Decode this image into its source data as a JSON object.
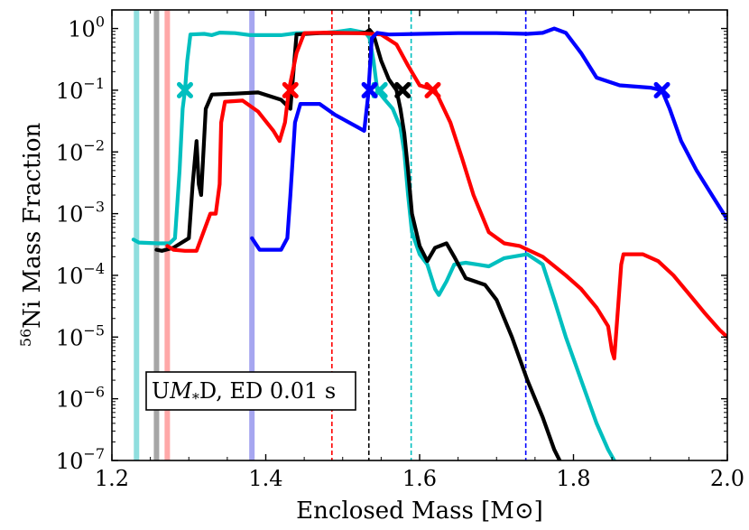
{
  "chart_data": {
    "type": "line",
    "xlabel": "Enclosed Mass [M⊙]",
    "ylabel_mass_number": "56",
    "ylabel_text": "Ni Mass Fraction",
    "xlim": [
      1.2,
      2.0
    ],
    "ylim": [
      1e-07,
      2
    ],
    "yscale": "log",
    "grid": false,
    "x_ticks": [
      1.2,
      1.4,
      1.6,
      1.8,
      2.0
    ],
    "x_tick_labels": [
      "1.2",
      "1.4",
      "1.6",
      "1.8",
      "2.0"
    ],
    "y_ticks": [
      1e-07,
      1e-06,
      1e-05,
      0.0001,
      0.001,
      0.01,
      0.1,
      1
    ],
    "y_tick_base": "10",
    "y_tick_exponents": [
      "−7",
      "−6",
      "−5",
      "−4",
      "−3",
      "−2",
      "−1",
      "0"
    ],
    "annotation": {
      "text_prefix": "U",
      "text_italic": "M",
      "text_sub": "*",
      "text_suffix": "D, ED 0.01 s",
      "location": "lower-left"
    },
    "vertical_bands": [
      {
        "x": 1.232,
        "color": "#8fdede"
      },
      {
        "x": 1.258,
        "color": "#a6a6a6"
      },
      {
        "x": 1.272,
        "color": "#ffa8a8"
      },
      {
        "x": 1.382,
        "color": "#a6a6f0"
      }
    ],
    "vertical_dashed_lines": [
      {
        "x": 1.486,
        "color": "#ff0000"
      },
      {
        "x": 1.534,
        "color": "#000000"
      },
      {
        "x": 1.589,
        "color": "#00bfbf"
      },
      {
        "x": 1.738,
        "color": "#0000ff"
      }
    ],
    "series": [
      {
        "color": "#00bfbf",
        "points": [
          [
            1.228,
            0.00038
          ],
          [
            1.235,
            0.00034
          ],
          [
            1.26,
            0.00033
          ],
          [
            1.275,
            0.00033
          ],
          [
            1.282,
            0.0004
          ],
          [
            1.288,
            0.005
          ],
          [
            1.292,
            0.05
          ],
          [
            1.295,
            0.1
          ],
          [
            1.298,
            0.3
          ],
          [
            1.302,
            0.8
          ],
          [
            1.32,
            0.82
          ],
          [
            1.33,
            0.78
          ],
          [
            1.34,
            0.86
          ],
          [
            1.36,
            0.84
          ],
          [
            1.38,
            0.78
          ],
          [
            1.42,
            0.78
          ],
          [
            1.44,
            0.84
          ],
          [
            1.47,
            0.84
          ],
          [
            1.49,
            0.88
          ],
          [
            1.51,
            0.95
          ],
          [
            1.53,
            0.85
          ],
          [
            1.535,
            0.7
          ],
          [
            1.54,
            0.3
          ],
          [
            1.545,
            0.1
          ],
          [
            1.555,
            0.07
          ],
          [
            1.565,
            0.05
          ],
          [
            1.575,
            0.025
          ],
          [
            1.58,
            0.01
          ],
          [
            1.585,
            0.002
          ],
          [
            1.59,
            0.0005
          ],
          [
            1.6,
            0.00022
          ],
          [
            1.61,
            0.00015
          ],
          [
            1.62,
            6e-05
          ],
          [
            1.625,
            4.8e-05
          ],
          [
            1.635,
            8e-05
          ],
          [
            1.645,
            0.00015
          ],
          [
            1.66,
            0.00016
          ],
          [
            1.675,
            0.00015
          ],
          [
            1.69,
            0.00014
          ],
          [
            1.71,
            0.00019
          ],
          [
            1.74,
            0.00022
          ],
          [
            1.76,
            0.00015
          ],
          [
            1.775,
            4e-05
          ],
          [
            1.79,
            1e-05
          ],
          [
            1.81,
            2e-06
          ],
          [
            1.83,
            4e-07
          ],
          [
            1.845,
            1.5e-07
          ],
          [
            1.853,
            1e-07
          ]
        ]
      },
      {
        "color": "#000000",
        "points": [
          [
            1.258,
            0.00026
          ],
          [
            1.265,
            0.00025
          ],
          [
            1.28,
            0.00028
          ],
          [
            1.3,
            0.0004
          ],
          [
            1.305,
            0.003
          ],
          [
            1.31,
            0.015
          ],
          [
            1.313,
            0.003
          ],
          [
            1.316,
            0.002
          ],
          [
            1.322,
            0.05
          ],
          [
            1.33,
            0.085
          ],
          [
            1.36,
            0.088
          ],
          [
            1.39,
            0.092
          ],
          [
            1.42,
            0.07
          ],
          [
            1.432,
            0.05
          ],
          [
            1.436,
            0.2
          ],
          [
            1.44,
            0.8
          ],
          [
            1.47,
            0.84
          ],
          [
            1.5,
            0.84
          ],
          [
            1.52,
            0.84
          ],
          [
            1.53,
            0.86
          ],
          [
            1.535,
            0.95
          ],
          [
            1.54,
            0.8
          ],
          [
            1.55,
            0.3
          ],
          [
            1.56,
            0.15
          ],
          [
            1.57,
            0.1
          ],
          [
            1.575,
            0.05
          ],
          [
            1.58,
            0.02
          ],
          [
            1.585,
            0.005
          ],
          [
            1.59,
            0.001
          ],
          [
            1.6,
            0.0003
          ],
          [
            1.61,
            0.00017
          ],
          [
            1.62,
            0.00028
          ],
          [
            1.635,
            0.00033
          ],
          [
            1.645,
            0.0002
          ],
          [
            1.66,
            9e-05
          ],
          [
            1.685,
            7e-05
          ],
          [
            1.7,
            4e-05
          ],
          [
            1.72,
            1e-05
          ],
          [
            1.74,
            2e-06
          ],
          [
            1.76,
            5e-07
          ],
          [
            1.775,
            1.5e-07
          ],
          [
            1.782,
            1e-07
          ]
        ]
      },
      {
        "color": "#ff0000",
        "points": [
          [
            1.272,
            0.0003
          ],
          [
            1.28,
            0.00026
          ],
          [
            1.295,
            0.00025
          ],
          [
            1.31,
            0.00025
          ],
          [
            1.328,
            0.001
          ],
          [
            1.335,
            0.001
          ],
          [
            1.34,
            0.003
          ],
          [
            1.342,
            0.03
          ],
          [
            1.347,
            0.065
          ],
          [
            1.37,
            0.068
          ],
          [
            1.39,
            0.045
          ],
          [
            1.41,
            0.022
          ],
          [
            1.418,
            0.015
          ],
          [
            1.425,
            0.03
          ],
          [
            1.43,
            0.1
          ],
          [
            1.44,
            0.4
          ],
          [
            1.45,
            0.84
          ],
          [
            1.48,
            0.86
          ],
          [
            1.52,
            0.84
          ],
          [
            1.55,
            0.8
          ],
          [
            1.57,
            0.55
          ],
          [
            1.585,
            0.25
          ],
          [
            1.6,
            0.12
          ],
          [
            1.62,
            0.1
          ],
          [
            1.64,
            0.03
          ],
          [
            1.655,
            0.008
          ],
          [
            1.67,
            0.002
          ],
          [
            1.69,
            0.0005
          ],
          [
            1.71,
            0.00033
          ],
          [
            1.73,
            0.0003
          ],
          [
            1.76,
            0.0002
          ],
          [
            1.79,
            0.0001
          ],
          [
            1.81,
            6e-05
          ],
          [
            1.83,
            3e-05
          ],
          [
            1.845,
            1.5e-05
          ],
          [
            1.85,
            6e-06
          ],
          [
            1.853,
            4.5e-06
          ],
          [
            1.858,
            3e-05
          ],
          [
            1.862,
            0.00015
          ],
          [
            1.865,
            0.00022
          ],
          [
            1.89,
            0.00022
          ],
          [
            1.91,
            0.00017
          ],
          [
            1.93,
            0.0001
          ],
          [
            1.95,
            5e-05
          ],
          [
            1.97,
            2.5e-05
          ],
          [
            1.99,
            1.3e-05
          ],
          [
            2.0,
            1e-05
          ]
        ]
      },
      {
        "color": "#0000ff",
        "points": [
          [
            1.382,
            0.0004
          ],
          [
            1.392,
            0.00026
          ],
          [
            1.42,
            0.00026
          ],
          [
            1.428,
            0.0004
          ],
          [
            1.432,
            0.002
          ],
          [
            1.438,
            0.03
          ],
          [
            1.445,
            0.06
          ],
          [
            1.47,
            0.06
          ],
          [
            1.49,
            0.04
          ],
          [
            1.52,
            0.025
          ],
          [
            1.528,
            0.022
          ],
          [
            1.533,
            0.08
          ],
          [
            1.538,
            0.7
          ],
          [
            1.545,
            0.85
          ],
          [
            1.56,
            0.8
          ],
          [
            1.6,
            0.82
          ],
          [
            1.65,
            0.84
          ],
          [
            1.7,
            0.84
          ],
          [
            1.74,
            0.82
          ],
          [
            1.76,
            0.85
          ],
          [
            1.775,
            1.0
          ],
          [
            1.79,
            0.85
          ],
          [
            1.81,
            0.4
          ],
          [
            1.83,
            0.16
          ],
          [
            1.86,
            0.12
          ],
          [
            1.9,
            0.11
          ],
          [
            1.915,
            0.1
          ],
          [
            1.925,
            0.05
          ],
          [
            1.94,
            0.015
          ],
          [
            1.96,
            0.005
          ],
          [
            1.98,
            0.002
          ],
          [
            2.0,
            0.0008
          ]
        ]
      }
    ],
    "markers": [
      {
        "x": 1.295,
        "y": 0.1,
        "color": "#00bfbf"
      },
      {
        "x": 1.548,
        "y": 0.1,
        "color": "#00bfbf"
      },
      {
        "x": 1.432,
        "y": 0.1,
        "color": "#ff0000"
      },
      {
        "x": 1.617,
        "y": 0.1,
        "color": "#ff0000"
      },
      {
        "x": 1.578,
        "y": 0.1,
        "color": "#000000"
      },
      {
        "x": 1.535,
        "y": 0.1,
        "color": "#0000ff"
      },
      {
        "x": 1.915,
        "y": 0.1,
        "color": "#0000ff"
      }
    ]
  }
}
